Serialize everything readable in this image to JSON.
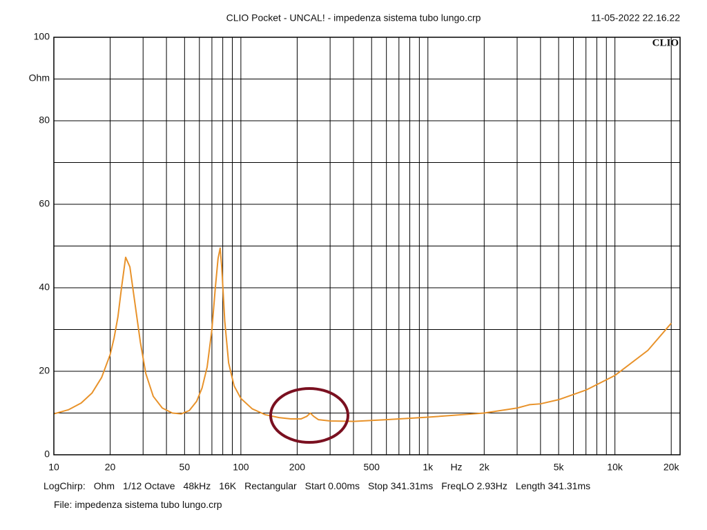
{
  "chart_data": {
    "type": "line",
    "title": "CLIO Pocket - UNCAL! - impedenza sistema tubo lungo.crp",
    "date": "11-05-2022 22.16.22",
    "logo": "CLIO",
    "xlabel": "Hz",
    "ylabel": "Ohm",
    "xscale": "log",
    "grid": true,
    "xlim": [
      10,
      22300
    ],
    "ylim": [
      0,
      100
    ],
    "xticks": [
      10,
      20,
      50,
      100,
      200,
      500,
      {
        "value": 1000,
        "label": "1k"
      },
      {
        "value": 2000,
        "label": "2k"
      },
      {
        "value": 5000,
        "label": "5k"
      },
      {
        "value": 10000,
        "label": "10k"
      },
      {
        "value": 20000,
        "label": "20k"
      }
    ],
    "xminor": [
      30,
      40,
      60,
      70,
      80,
      90,
      300,
      400,
      600,
      700,
      800,
      900,
      3000,
      4000,
      6000,
      7000,
      8000,
      9000
    ],
    "yticks": [
      0,
      20,
      40,
      60,
      80,
      100
    ],
    "yminor": [
      10,
      30,
      50,
      70,
      90
    ],
    "color": "#e8922a",
    "x": [
      10,
      12,
      14,
      16,
      18,
      20,
      21,
      22,
      23,
      24.2,
      25.5,
      27,
      29,
      31,
      34,
      38,
      43,
      48,
      53,
      58,
      62,
      66,
      70,
      73,
      75.5,
      77.5,
      79,
      82,
      86,
      92,
      100,
      115,
      135,
      160,
      185,
      210,
      225,
      235,
      245,
      260,
      300,
      400,
      600,
      1000,
      2000,
      3000,
      3500,
      4000,
      5000,
      7000,
      10000,
      15000,
      20000
    ],
    "values": [
      9.8,
      10.8,
      12.4,
      14.8,
      18.5,
      24,
      28,
      33,
      40,
      47.3,
      45,
      37,
      27,
      19.5,
      14,
      11.2,
      10,
      9.8,
      10.6,
      12.8,
      16,
      21,
      30,
      40,
      47,
      49.5,
      45,
      32,
      22,
      16.5,
      13.5,
      11,
      9.6,
      8.9,
      8.6,
      8.6,
      9.2,
      10,
      9.2,
      8.4,
      8.1,
      8,
      8.4,
      9,
      10,
      11.2,
      12,
      12.2,
      13.2,
      15.5,
      19,
      25,
      31.5
    ],
    "footer": [
      "LogChirp:",
      "Ohm",
      "1/12 Octave",
      "48kHz",
      "16K",
      "Rectangular",
      "Start 0.00ms",
      "Stop 341.31ms",
      "FreqLO 2.93Hz",
      "Length 341.31ms"
    ],
    "file": "File: impedenza sistema tubo lungo.crp"
  }
}
